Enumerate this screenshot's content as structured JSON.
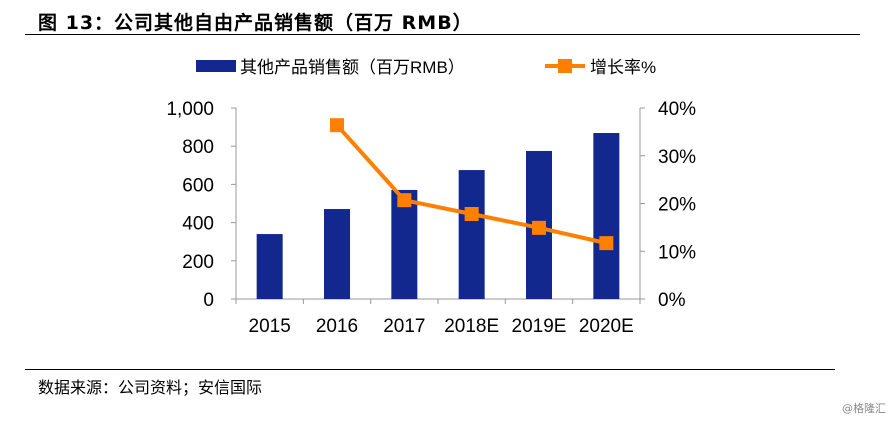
{
  "title": "图 13：公司其他自由产品销售额（百万 RMB）",
  "source": "数据来源：公司资料；安信国际",
  "watermark": "@格隆汇",
  "chart_data": {
    "type": "bar+line",
    "categories": [
      "2015",
      "2016",
      "2017",
      "2018E",
      "2019E",
      "2020E"
    ],
    "series": [
      {
        "name": "其他产品销售额（百万RMB）",
        "type": "bar",
        "axis": "left",
        "color": "#13288F",
        "values": [
          340,
          471,
          571,
          675,
          775,
          869
        ]
      },
      {
        "name": "增长率%",
        "type": "line",
        "axis": "right",
        "color": "#FF8000",
        "values": [
          null,
          36.4,
          20.7,
          17.8,
          14.9,
          11.7
        ]
      }
    ],
    "y_left": {
      "ylim": [
        0,
        1000
      ],
      "ticks": [
        "0",
        "200",
        "400",
        "600",
        "800",
        "1,000"
      ]
    },
    "y_right": {
      "ylim": [
        0,
        40
      ],
      "ticks": [
        "0%",
        "10%",
        "20%",
        "30%",
        "40%"
      ]
    },
    "legend": "top",
    "grid": false
  }
}
